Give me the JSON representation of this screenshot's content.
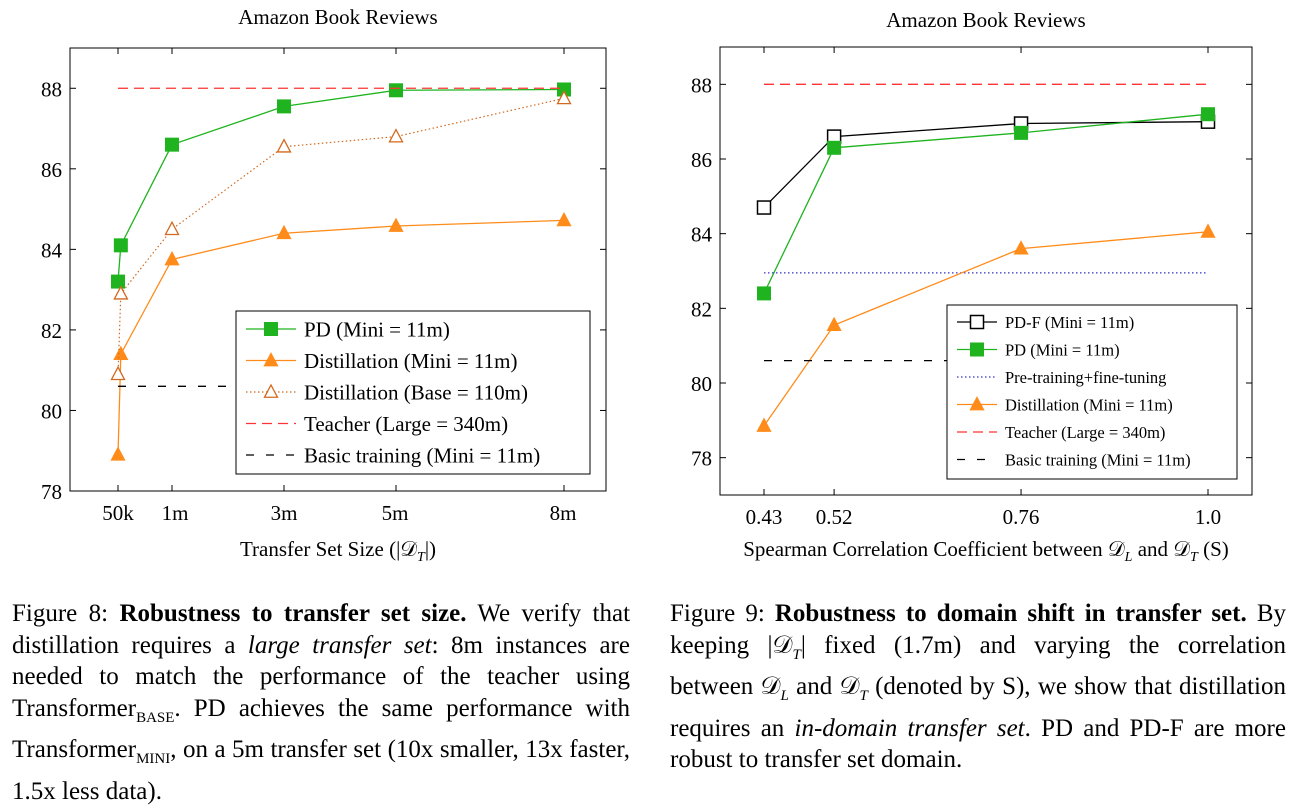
{
  "chart_data": [
    {
      "type": "line",
      "title": "Amazon Book Reviews",
      "xlabel": "Transfer Set Size (|𝒟",
      "xlabel_sub": "T",
      "xlabel_end": "|)",
      "x_tick_labels": [
        "50k",
        "1m",
        "3m",
        "5m",
        "8m"
      ],
      "x_ticks": [
        0.05,
        1,
        3,
        5,
        8
      ],
      "xlim": [
        0.05,
        8
      ],
      "ylim": [
        78,
        89
      ],
      "y_ticks": [
        78,
        80,
        82,
        84,
        86,
        88
      ],
      "grid": false,
      "legend_position": "bottom-right",
      "series": [
        {
          "name": "PD (Mini = 11m)",
          "color": "#1fb41f",
          "marker": "square-filled",
          "line": "solid",
          "x": [
            0.05,
            0.1,
            1,
            3,
            5,
            8
          ],
          "y": [
            83.2,
            84.1,
            86.6,
            87.55,
            87.95,
            87.97
          ]
        },
        {
          "name": "Distillation (Mini = 11m)",
          "color": "#ff8c1a",
          "marker": "triangle-filled",
          "line": "solid",
          "x": [
            0.05,
            0.1,
            1,
            3,
            5,
            8
          ],
          "y": [
            78.9,
            81.4,
            83.75,
            84.4,
            84.58,
            84.72
          ]
        },
        {
          "name": "Distillation (Base = 110m)",
          "color": "#d2691e",
          "marker": "triangle-open",
          "line": "dotted",
          "x": [
            0.05,
            0.1,
            1,
            3,
            5,
            8
          ],
          "y": [
            80.9,
            82.9,
            84.5,
            86.55,
            86.8,
            87.75
          ]
        },
        {
          "name": "Teacher (Large = 340m)",
          "color": "#ff3333",
          "marker": "none",
          "line": "dashed",
          "x": [
            0.05,
            8
          ],
          "y": [
            88,
            88
          ]
        },
        {
          "name": "Basic training (Mini = 11m)",
          "color": "#000000",
          "marker": "none",
          "line": "dashed-wide",
          "x": [
            0.05,
            8
          ],
          "y": [
            80.6,
            80.6
          ]
        }
      ]
    },
    {
      "type": "line",
      "title": "Amazon Book Reviews",
      "xlabel": "Spearman Correlation Coefficient between 𝒟",
      "xlabel_sub1": "L",
      "xlabel_mid": " and 𝒟",
      "xlabel_sub2": "T",
      "xlabel_end": " (S)",
      "x_tick_labels": [
        "0.43",
        "0.52",
        "0.76",
        "1.0"
      ],
      "x_ticks": [
        0.43,
        0.52,
        0.76,
        1.0
      ],
      "xlim": [
        0.43,
        1.0
      ],
      "ylim": [
        77,
        89
      ],
      "y_ticks": [
        78,
        80,
        82,
        84,
        86,
        88
      ],
      "grid": false,
      "legend_position": "bottom-right",
      "series": [
        {
          "name": "PD-F (Mini = 11m)",
          "color": "#000000",
          "marker": "square-open",
          "line": "solid",
          "x": [
            0.43,
            0.52,
            0.76,
            1.0
          ],
          "y": [
            84.7,
            86.6,
            86.95,
            87.0
          ]
        },
        {
          "name": "PD (Mini = 11m)",
          "color": "#1fb41f",
          "marker": "square-filled",
          "line": "solid",
          "x": [
            0.43,
            0.52,
            0.76,
            1.0
          ],
          "y": [
            82.4,
            86.3,
            86.7,
            87.2
          ]
        },
        {
          "name": "Pre-training+fine-tuning",
          "color": "#3333cc",
          "marker": "none",
          "line": "dotted",
          "x": [
            0.43,
            1.0
          ],
          "y": [
            82.95,
            82.95
          ]
        },
        {
          "name": "Distillation (Mini = 11m)",
          "color": "#ff8c1a",
          "marker": "triangle-filled",
          "line": "solid",
          "x": [
            0.43,
            0.52,
            0.76,
            1.0
          ],
          "y": [
            78.85,
            81.55,
            83.6,
            84.05
          ]
        },
        {
          "name": "Teacher (Large = 340m)",
          "color": "#ff3333",
          "marker": "none",
          "line": "dashed",
          "x": [
            0.43,
            1.0
          ],
          "y": [
            88,
            88
          ]
        },
        {
          "name": "Basic training (Mini = 11m)",
          "color": "#000000",
          "marker": "none",
          "line": "dashed-wide",
          "x": [
            0.43,
            1.0
          ],
          "y": [
            80.6,
            80.6
          ]
        }
      ]
    }
  ],
  "captions": {
    "fig8": {
      "label": "Figure 8:",
      "bold": "Robustness to transfer set size.",
      "t1": " We verify that distillation requires a ",
      "italic": "large transfer set",
      "t2": ": 8m instances are needed to match the performance of the teacher using Transformer",
      "sub1": "BASE",
      "t3": ". PD achieves the same performance with Transformer",
      "sub2": "MINI",
      "t4": ", on a 5m transfer set (10x smaller, 13x faster, 1.5x less data)."
    },
    "fig9": {
      "label": "Figure 9:",
      "bold": "Robustness to domain shift in transfer set.",
      "t1": " By keeping |𝒟",
      "sub1": "T",
      "t2": "| fixed (1.7m) and varying the correlation between 𝒟",
      "sub2": "L",
      "t3": " and 𝒟",
      "sub3": "T",
      "t4": " (denoted by S), we show that distillation requires an ",
      "italic": "in-domain transfer set",
      "t5": ". PD and PD-F are more robust to transfer set domain."
    }
  }
}
